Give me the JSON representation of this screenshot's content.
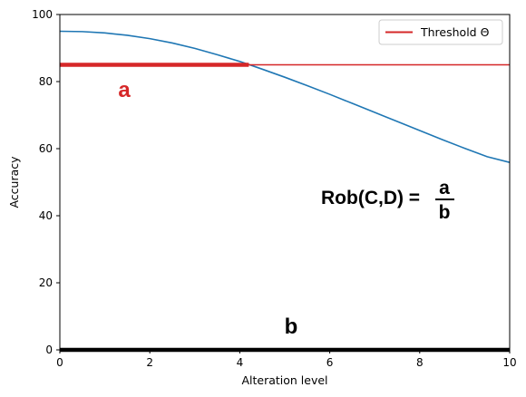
{
  "chart_data": {
    "type": "line",
    "xlabel": "Alteration level",
    "ylabel": "Accuracy",
    "xlim": [
      0,
      10
    ],
    "ylim": [
      0,
      100
    ],
    "xticks": [
      0,
      2,
      4,
      6,
      8,
      10
    ],
    "yticks": [
      0,
      20,
      40,
      60,
      80,
      100
    ],
    "grid": false,
    "legend_position": "top-right",
    "series": [
      {
        "name": "",
        "color": "#1f77b4",
        "x": [
          0,
          0.5,
          1,
          1.5,
          2,
          2.5,
          3,
          3.5,
          4,
          4.5,
          5,
          5.5,
          6,
          6.5,
          7,
          7.5,
          8,
          8.5,
          9,
          9.5,
          10
        ],
        "y": [
          95,
          94.9,
          94.5,
          93.8,
          92.8,
          91.5,
          89.9,
          88.0,
          86.0,
          83.7,
          81.3,
          78.8,
          76.2,
          73.5,
          70.8,
          68.1,
          65.4,
          62.7,
          60.1,
          57.6,
          55.9
        ]
      }
    ],
    "threshold": {
      "label": "Threshold Θ",
      "value": 85,
      "color": "#d62728"
    },
    "annotations": {
      "a_label": "a",
      "a_segment": {
        "x_start": 0,
        "x_end": 4.2,
        "y": 85,
        "color": "#d62728"
      },
      "b_label": "b",
      "b_segment": {
        "x_start": 0,
        "x_end": 10,
        "y": 0,
        "color": "#000000"
      },
      "formula_left": "Rob(C,D) =",
      "formula_num": "a",
      "formula_den": "b"
    }
  }
}
